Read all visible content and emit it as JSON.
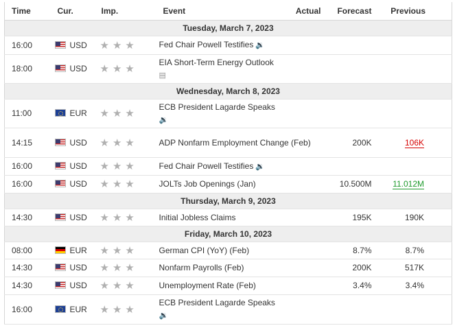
{
  "headers": {
    "time": "Time",
    "currency": "Cur.",
    "importance": "Imp.",
    "event": "Event",
    "actual": "Actual",
    "forecast": "Forecast",
    "previous": "Previous"
  },
  "days": [
    {
      "label": "Tuesday, March 7, 2023"
    },
    {
      "label": "Wednesday, March 8, 2023"
    },
    {
      "label": "Thursday, March 9, 2023"
    },
    {
      "label": "Friday, March 10, 2023"
    }
  ],
  "events": [
    {
      "time": "16:00",
      "currency": "USD",
      "flag": "us-flag-icon",
      "importance": 3,
      "event": "Fed Chair Powell Testifies",
      "extra_icon": "speaker-icon",
      "actual": "",
      "forecast": "",
      "previous": ""
    },
    {
      "time": "18:00",
      "currency": "USD",
      "flag": "us-flag-icon",
      "importance": 3,
      "event": "EIA Short-Term Energy Outlook",
      "extra_icon": "document-icon",
      "actual": "",
      "forecast": "",
      "previous": ""
    },
    {
      "time": "11:00",
      "currency": "EUR",
      "flag": "eu-flag-icon",
      "importance": 3,
      "event": "ECB President Lagarde Speaks",
      "extra_icon": "speaker-icon",
      "actual": "",
      "forecast": "",
      "previous": ""
    },
    {
      "time": "14:15",
      "currency": "USD",
      "flag": "us-flag-icon",
      "importance": 3,
      "event": "ADP Nonfarm Employment Change (Feb)",
      "extra_icon": "",
      "actual": "",
      "forecast": "200K",
      "previous": "106K",
      "previous_color": "#d50000"
    },
    {
      "time": "16:00",
      "currency": "USD",
      "flag": "us-flag-icon",
      "importance": 3,
      "event": "Fed Chair Powell Testifies",
      "extra_icon": "speaker-icon",
      "actual": "",
      "forecast": "",
      "previous": ""
    },
    {
      "time": "16:00",
      "currency": "USD",
      "flag": "us-flag-icon",
      "importance": 3,
      "event": "JOLTs Job Openings (Jan)",
      "extra_icon": "",
      "actual": "",
      "forecast": "10.500M",
      "previous": "11.012M",
      "previous_color": "#1d9a2b"
    },
    {
      "time": "14:30",
      "currency": "USD",
      "flag": "us-flag-icon",
      "importance": 3,
      "event": "Initial Jobless Claims",
      "extra_icon": "",
      "actual": "",
      "forecast": "195K",
      "previous": "190K"
    },
    {
      "time": "08:00",
      "currency": "EUR",
      "flag": "de-flag-icon",
      "importance": 3,
      "event": "German CPI (YoY) (Feb)",
      "extra_icon": "",
      "actual": "",
      "forecast": "8.7%",
      "previous": "8.7%"
    },
    {
      "time": "14:30",
      "currency": "USD",
      "flag": "us-flag-icon",
      "importance": 3,
      "event": "Nonfarm Payrolls (Feb)",
      "extra_icon": "",
      "actual": "",
      "forecast": "200K",
      "previous": "517K"
    },
    {
      "time": "14:30",
      "currency": "USD",
      "flag": "us-flag-icon",
      "importance": 3,
      "event": "Unemployment Rate (Feb)",
      "extra_icon": "",
      "actual": "",
      "forecast": "3.4%",
      "previous": "3.4%"
    },
    {
      "time": "16:00",
      "currency": "EUR",
      "flag": "eu-flag-icon",
      "importance": 3,
      "event": "ECB President Lagarde Speaks",
      "extra_icon": "speaker-icon",
      "actual": "",
      "forecast": "",
      "previous": ""
    }
  ]
}
